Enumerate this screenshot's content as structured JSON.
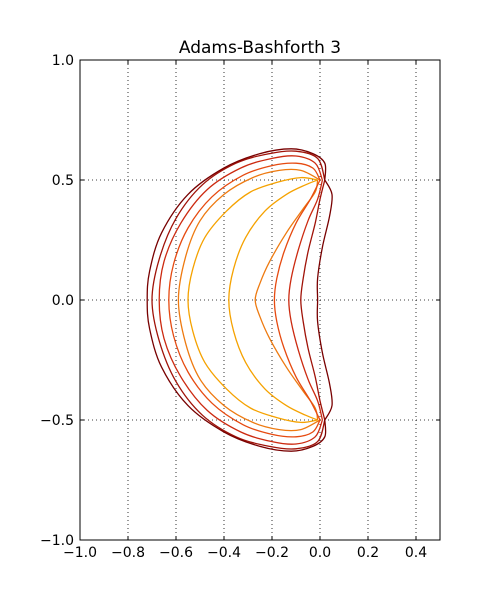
{
  "chart_data": {
    "type": "line",
    "title": "Adams-Bashforth 3",
    "xlabel": "",
    "ylabel": "",
    "xlim": [
      -1.0,
      0.5
    ],
    "ylim": [
      -1.0,
      1.0
    ],
    "grid": true,
    "x_ticks": [
      -1.0,
      -0.8,
      -0.6,
      -0.4,
      -0.2,
      0.0,
      0.2,
      0.4
    ],
    "x_tick_labels": [
      "−1.0",
      "−0.8",
      "−0.6",
      "−0.4",
      "−0.2",
      "0.0",
      "0.2",
      "0.4"
    ],
    "y_ticks": [
      1.0,
      0.5,
      0.0,
      -0.5,
      -1.0
    ],
    "y_tick_labels": [
      "1.0",
      "0.5",
      "0.0",
      "−0.5",
      "−1.0"
    ],
    "series": [
      {
        "color": "#f5a200",
        "points": [
          [
            -0.01,
            0.5
          ],
          [
            -0.06,
            0.48
          ],
          [
            -0.14,
            0.44
          ],
          [
            -0.23,
            0.37
          ],
          [
            -0.31,
            0.26
          ],
          [
            -0.36,
            0.13
          ],
          [
            -0.38,
            0.0
          ],
          [
            -0.36,
            -0.13
          ],
          [
            -0.31,
            -0.26
          ],
          [
            -0.23,
            -0.37
          ],
          [
            -0.14,
            -0.44
          ],
          [
            -0.06,
            -0.48
          ],
          [
            -0.01,
            -0.5
          ]
        ]
      },
      {
        "color": "#f5a200",
        "points": [
          [
            -0.01,
            0.5
          ],
          [
            -0.08,
            0.51
          ],
          [
            -0.18,
            0.49
          ],
          [
            -0.29,
            0.45
          ],
          [
            -0.39,
            0.37
          ],
          [
            -0.48,
            0.26
          ],
          [
            -0.53,
            0.13
          ],
          [
            -0.55,
            0.0
          ],
          [
            -0.53,
            -0.13
          ],
          [
            -0.48,
            -0.26
          ],
          [
            -0.39,
            -0.37
          ],
          [
            -0.29,
            -0.45
          ],
          [
            -0.18,
            -0.49
          ],
          [
            -0.08,
            -0.51
          ],
          [
            -0.01,
            -0.5
          ]
        ]
      },
      {
        "color": "#ee7a10",
        "points": [
          [
            -0.01,
            0.5
          ],
          [
            -0.02,
            0.45
          ],
          [
            -0.07,
            0.38
          ],
          [
            -0.14,
            0.28
          ],
          [
            -0.21,
            0.16
          ],
          [
            -0.25,
            0.07
          ],
          [
            -0.27,
            0.0
          ],
          [
            -0.25,
            -0.07
          ],
          [
            -0.21,
            -0.16
          ],
          [
            -0.14,
            -0.28
          ],
          [
            -0.07,
            -0.38
          ],
          [
            -0.02,
            -0.45
          ],
          [
            -0.01,
            -0.5
          ]
        ]
      },
      {
        "color": "#ee7a10",
        "points": [
          [
            0.0,
            0.5
          ],
          [
            -0.08,
            0.54
          ],
          [
            -0.17,
            0.54
          ],
          [
            -0.28,
            0.51
          ],
          [
            -0.4,
            0.44
          ],
          [
            -0.5,
            0.33
          ],
          [
            -0.56,
            0.18
          ],
          [
            -0.59,
            0.0
          ],
          [
            -0.56,
            -0.18
          ],
          [
            -0.5,
            -0.33
          ],
          [
            -0.4,
            -0.44
          ],
          [
            -0.28,
            -0.51
          ],
          [
            -0.17,
            -0.54
          ],
          [
            -0.08,
            -0.54
          ],
          [
            0.0,
            -0.5
          ]
        ]
      },
      {
        "color": "#e64a10",
        "points": [
          [
            0.0,
            0.5
          ],
          [
            -0.04,
            0.42
          ],
          [
            -0.1,
            0.32
          ],
          [
            -0.15,
            0.2
          ],
          [
            -0.18,
            0.09
          ],
          [
            -0.19,
            0.0
          ],
          [
            -0.18,
            -0.09
          ],
          [
            -0.15,
            -0.2
          ],
          [
            -0.1,
            -0.32
          ],
          [
            -0.04,
            -0.42
          ],
          [
            0.0,
            -0.5
          ]
        ]
      },
      {
        "color": "#e64a10",
        "points": [
          [
            0.0,
            0.5
          ],
          [
            -0.03,
            0.55
          ],
          [
            -0.1,
            0.57
          ],
          [
            -0.2,
            0.56
          ],
          [
            -0.32,
            0.52
          ],
          [
            -0.45,
            0.43
          ],
          [
            -0.55,
            0.3
          ],
          [
            -0.61,
            0.15
          ],
          [
            -0.63,
            0.0
          ],
          [
            -0.61,
            -0.15
          ],
          [
            -0.55,
            -0.3
          ],
          [
            -0.45,
            -0.43
          ],
          [
            -0.32,
            -0.52
          ],
          [
            -0.2,
            -0.56
          ],
          [
            -0.1,
            -0.57
          ],
          [
            -0.03,
            -0.55
          ],
          [
            0.0,
            -0.5
          ]
        ]
      },
      {
        "color": "#cc2a10",
        "points": [
          [
            0.01,
            0.5
          ],
          [
            -0.01,
            0.42
          ],
          [
            -0.05,
            0.33
          ],
          [
            -0.09,
            0.21
          ],
          [
            -0.12,
            0.09
          ],
          [
            -0.13,
            0.0
          ],
          [
            -0.12,
            -0.09
          ],
          [
            -0.09,
            -0.21
          ],
          [
            -0.05,
            -0.33
          ],
          [
            -0.01,
            -0.42
          ],
          [
            0.01,
            -0.5
          ]
        ]
      },
      {
        "color": "#cc2a10",
        "points": [
          [
            0.01,
            0.5
          ],
          [
            -0.02,
            0.57
          ],
          [
            -0.1,
            0.6
          ],
          [
            -0.2,
            0.59
          ],
          [
            -0.33,
            0.55
          ],
          [
            -0.47,
            0.46
          ],
          [
            -0.58,
            0.32
          ],
          [
            -0.65,
            0.16
          ],
          [
            -0.67,
            0.0
          ],
          [
            -0.65,
            -0.16
          ],
          [
            -0.58,
            -0.32
          ],
          [
            -0.47,
            -0.46
          ],
          [
            -0.33,
            -0.55
          ],
          [
            -0.2,
            -0.59
          ],
          [
            -0.1,
            -0.6
          ],
          [
            -0.02,
            -0.57
          ],
          [
            0.01,
            -0.5
          ]
        ]
      },
      {
        "color": "#a01208",
        "points": [
          [
            0.02,
            0.5
          ],
          [
            0.0,
            0.42
          ],
          [
            -0.02,
            0.32
          ],
          [
            -0.05,
            0.2
          ],
          [
            -0.07,
            0.09
          ],
          [
            -0.08,
            0.0
          ],
          [
            -0.07,
            -0.09
          ],
          [
            -0.05,
            -0.2
          ],
          [
            -0.02,
            -0.32
          ],
          [
            0.0,
            -0.42
          ],
          [
            0.02,
            -0.5
          ]
        ]
      },
      {
        "color": "#a01208",
        "points": [
          [
            0.02,
            0.5
          ],
          [
            -0.01,
            0.59
          ],
          [
            -0.1,
            0.62
          ],
          [
            -0.21,
            0.61
          ],
          [
            -0.35,
            0.57
          ],
          [
            -0.49,
            0.48
          ],
          [
            -0.6,
            0.34
          ],
          [
            -0.67,
            0.17
          ],
          [
            -0.7,
            0.0
          ],
          [
            -0.67,
            -0.17
          ],
          [
            -0.6,
            -0.34
          ],
          [
            -0.49,
            -0.48
          ],
          [
            -0.35,
            -0.57
          ],
          [
            -0.21,
            -0.61
          ],
          [
            -0.1,
            -0.62
          ],
          [
            -0.01,
            -0.59
          ],
          [
            0.02,
            -0.5
          ]
        ]
      },
      {
        "color": "#780000",
        "points": [
          [
            0.02,
            0.5
          ],
          [
            0.05,
            0.44
          ],
          [
            0.04,
            0.35
          ],
          [
            0.01,
            0.22
          ],
          [
            -0.01,
            0.09
          ],
          [
            -0.01,
            0.0
          ],
          [
            -0.01,
            -0.09
          ],
          [
            0.01,
            -0.22
          ],
          [
            0.04,
            -0.35
          ],
          [
            0.05,
            -0.44
          ],
          [
            0.02,
            -0.5
          ]
        ]
      },
      {
        "color": "#780000",
        "points": [
          [
            0.02,
            0.5
          ],
          [
            0.02,
            0.57
          ],
          [
            -0.03,
            0.61
          ],
          [
            -0.12,
            0.63
          ],
          [
            -0.25,
            0.61
          ],
          [
            -0.4,
            0.55
          ],
          [
            -0.55,
            0.44
          ],
          [
            -0.66,
            0.28
          ],
          [
            -0.71,
            0.12
          ],
          [
            -0.72,
            0.0
          ],
          [
            -0.71,
            -0.12
          ],
          [
            -0.66,
            -0.28
          ],
          [
            -0.55,
            -0.44
          ],
          [
            -0.4,
            -0.55
          ],
          [
            -0.25,
            -0.61
          ],
          [
            -0.12,
            -0.63
          ],
          [
            -0.03,
            -0.61
          ],
          [
            0.02,
            -0.57
          ],
          [
            0.02,
            -0.5
          ]
        ]
      }
    ]
  }
}
